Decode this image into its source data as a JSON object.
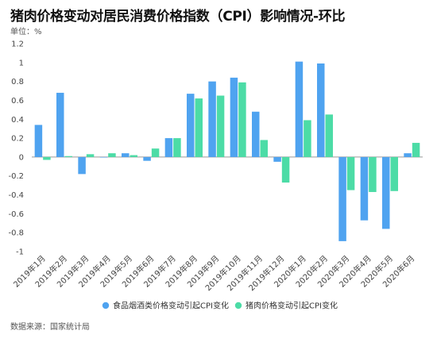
{
  "header": {
    "title": "猪肉价格变动对居民消费价格指数（CPI）影响情况-环比",
    "unit": "单位：%"
  },
  "footer": {
    "source": "数据来源：国家统计局"
  },
  "colors": {
    "series1": "#4fa3f0",
    "series2": "#4cdca6",
    "zero_line": "#9a9a9a",
    "tick_text": "#444444"
  },
  "chart_data": {
    "type": "bar",
    "title": "猪肉价格变动对居民消费价格指数（CPI）影响情况-环比",
    "xlabel": "",
    "ylabel": "单位：%",
    "ylim": [
      -1,
      1.2
    ],
    "yticks": [
      -1,
      -0.8,
      -0.6,
      -0.4,
      -0.2,
      0,
      0.2,
      0.4,
      0.6,
      0.8,
      1,
      1.2
    ],
    "yticks_labels": [
      "-1",
      "-0.8",
      "-0.6",
      "-0.4",
      "-0.2",
      "0",
      "0.2",
      "0.4",
      "0.6",
      "0.8",
      "1",
      "1.2"
    ],
    "grid": false,
    "legend_position": "bottom",
    "categories": [
      "2019年1月",
      "2019年2月",
      "2019年3月",
      "2019年4月",
      "2019年5月",
      "2019年6月",
      "2019年7月",
      "2019年8月",
      "2019年9月",
      "2019年10月",
      "2019年11月",
      "2019年12月",
      "2020年1月",
      "2020年2月",
      "2020年3月",
      "2020年4月",
      "2020年5月",
      "2020年6月"
    ],
    "series": [
      {
        "name": "食品烟酒类价格变动引起CPI变化",
        "values": [
          0.34,
          0.68,
          -0.18,
          0.0,
          0.04,
          -0.04,
          0.2,
          0.67,
          0.8,
          0.84,
          0.48,
          -0.05,
          1.01,
          0.99,
          -0.89,
          -0.67,
          -0.76,
          0.04
        ]
      },
      {
        "name": "猪肉价格变动引起CPI变化",
        "values": [
          -0.03,
          0.01,
          0.03,
          0.04,
          0.02,
          0.09,
          0.2,
          0.62,
          0.65,
          0.79,
          0.18,
          -0.27,
          0.39,
          0.45,
          -0.35,
          -0.37,
          -0.36,
          0.15
        ]
      }
    ]
  }
}
